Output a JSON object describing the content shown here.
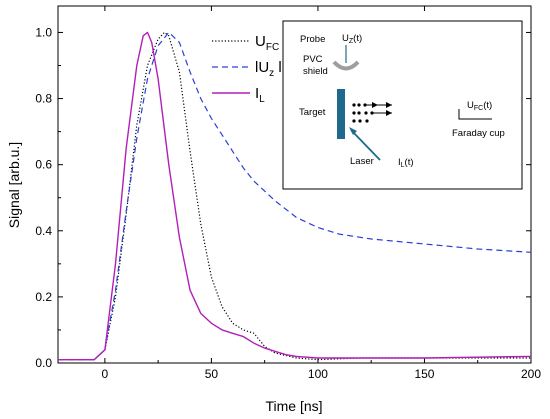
{
  "chart_data": {
    "type": "line",
    "xlabel": "Time [ns]",
    "ylabel": "Signal [arb.u.]",
    "xlim": [
      -22,
      200
    ],
    "ylim": [
      0,
      1.08
    ],
    "xticks": [
      0,
      50,
      100,
      150,
      200
    ],
    "yticks": [
      "0.0",
      "0.2",
      "0.4",
      "0.6",
      "0.8",
      "1.0"
    ],
    "legend_position": "top-center",
    "series": [
      {
        "name": "U_FC",
        "legend": {
          "main": "U",
          "sub": "FC",
          "suffix": ""
        },
        "color": "#000000",
        "style": "dotted",
        "x": [
          -22,
          -5,
          0,
          5,
          10,
          15,
          20,
          25,
          28,
          30,
          35,
          40,
          45,
          50,
          55,
          60,
          65,
          70,
          75,
          80,
          90,
          100,
          120,
          150,
          200
        ],
        "y": [
          0.01,
          0.01,
          0.04,
          0.2,
          0.45,
          0.72,
          0.9,
          0.98,
          1.0,
          0.99,
          0.88,
          0.64,
          0.42,
          0.26,
          0.17,
          0.12,
          0.1,
          0.09,
          0.05,
          0.03,
          0.015,
          0.01,
          0.015,
          0.015,
          0.015
        ]
      },
      {
        "name": "|U_z|",
        "legend": {
          "main": "lU",
          "sub": "z",
          "suffix": " l"
        },
        "color": "#2a40d8",
        "style": "dashed",
        "x": [
          -22,
          -5,
          0,
          5,
          10,
          15,
          20,
          25,
          30,
          35,
          40,
          45,
          50,
          55,
          60,
          65,
          70,
          75,
          80,
          90,
          100,
          110,
          125,
          150,
          175,
          200
        ],
        "y": [
          0.01,
          0.01,
          0.04,
          0.22,
          0.46,
          0.68,
          0.86,
          0.96,
          1.0,
          0.97,
          0.88,
          0.8,
          0.74,
          0.69,
          0.64,
          0.59,
          0.55,
          0.52,
          0.49,
          0.44,
          0.41,
          0.39,
          0.375,
          0.36,
          0.345,
          0.335
        ]
      },
      {
        "name": "I_L",
        "legend": {
          "main": "I",
          "sub": "L",
          "suffix": ""
        },
        "color": "#b21fb8",
        "style": "solid",
        "x": [
          -22,
          -5,
          0,
          5,
          10,
          15,
          18,
          20,
          22,
          25,
          30,
          35,
          40,
          45,
          50,
          55,
          60,
          65,
          70,
          75,
          80,
          85,
          90,
          100,
          125,
          150,
          200
        ],
        "y": [
          0.01,
          0.01,
          0.04,
          0.3,
          0.65,
          0.9,
          0.99,
          1.0,
          0.97,
          0.86,
          0.6,
          0.38,
          0.22,
          0.15,
          0.12,
          0.1,
          0.09,
          0.08,
          0.06,
          0.045,
          0.035,
          0.025,
          0.02,
          0.015,
          0.015,
          0.015,
          0.02
        ]
      }
    ]
  },
  "inset": {
    "probe": "Probe",
    "uz": "U",
    "uz_sub": "Z",
    "uz_suffix": "(t)",
    "pvc_line1": "PVC",
    "pvc_line2": "shield",
    "target": "Target",
    "laser": "Laser",
    "il": "I",
    "il_sub": "L",
    "il_suffix": "(t)",
    "ufc": "U",
    "ufc_sub": "FC",
    "ufc_suffix": "(t)",
    "faraday": "Faraday cup",
    "target_color": "#1f6a8c",
    "probe_line_color": "#1f6a8c",
    "shield_color": "#9e9e9e",
    "arrow_color": "#1f6a8c"
  }
}
